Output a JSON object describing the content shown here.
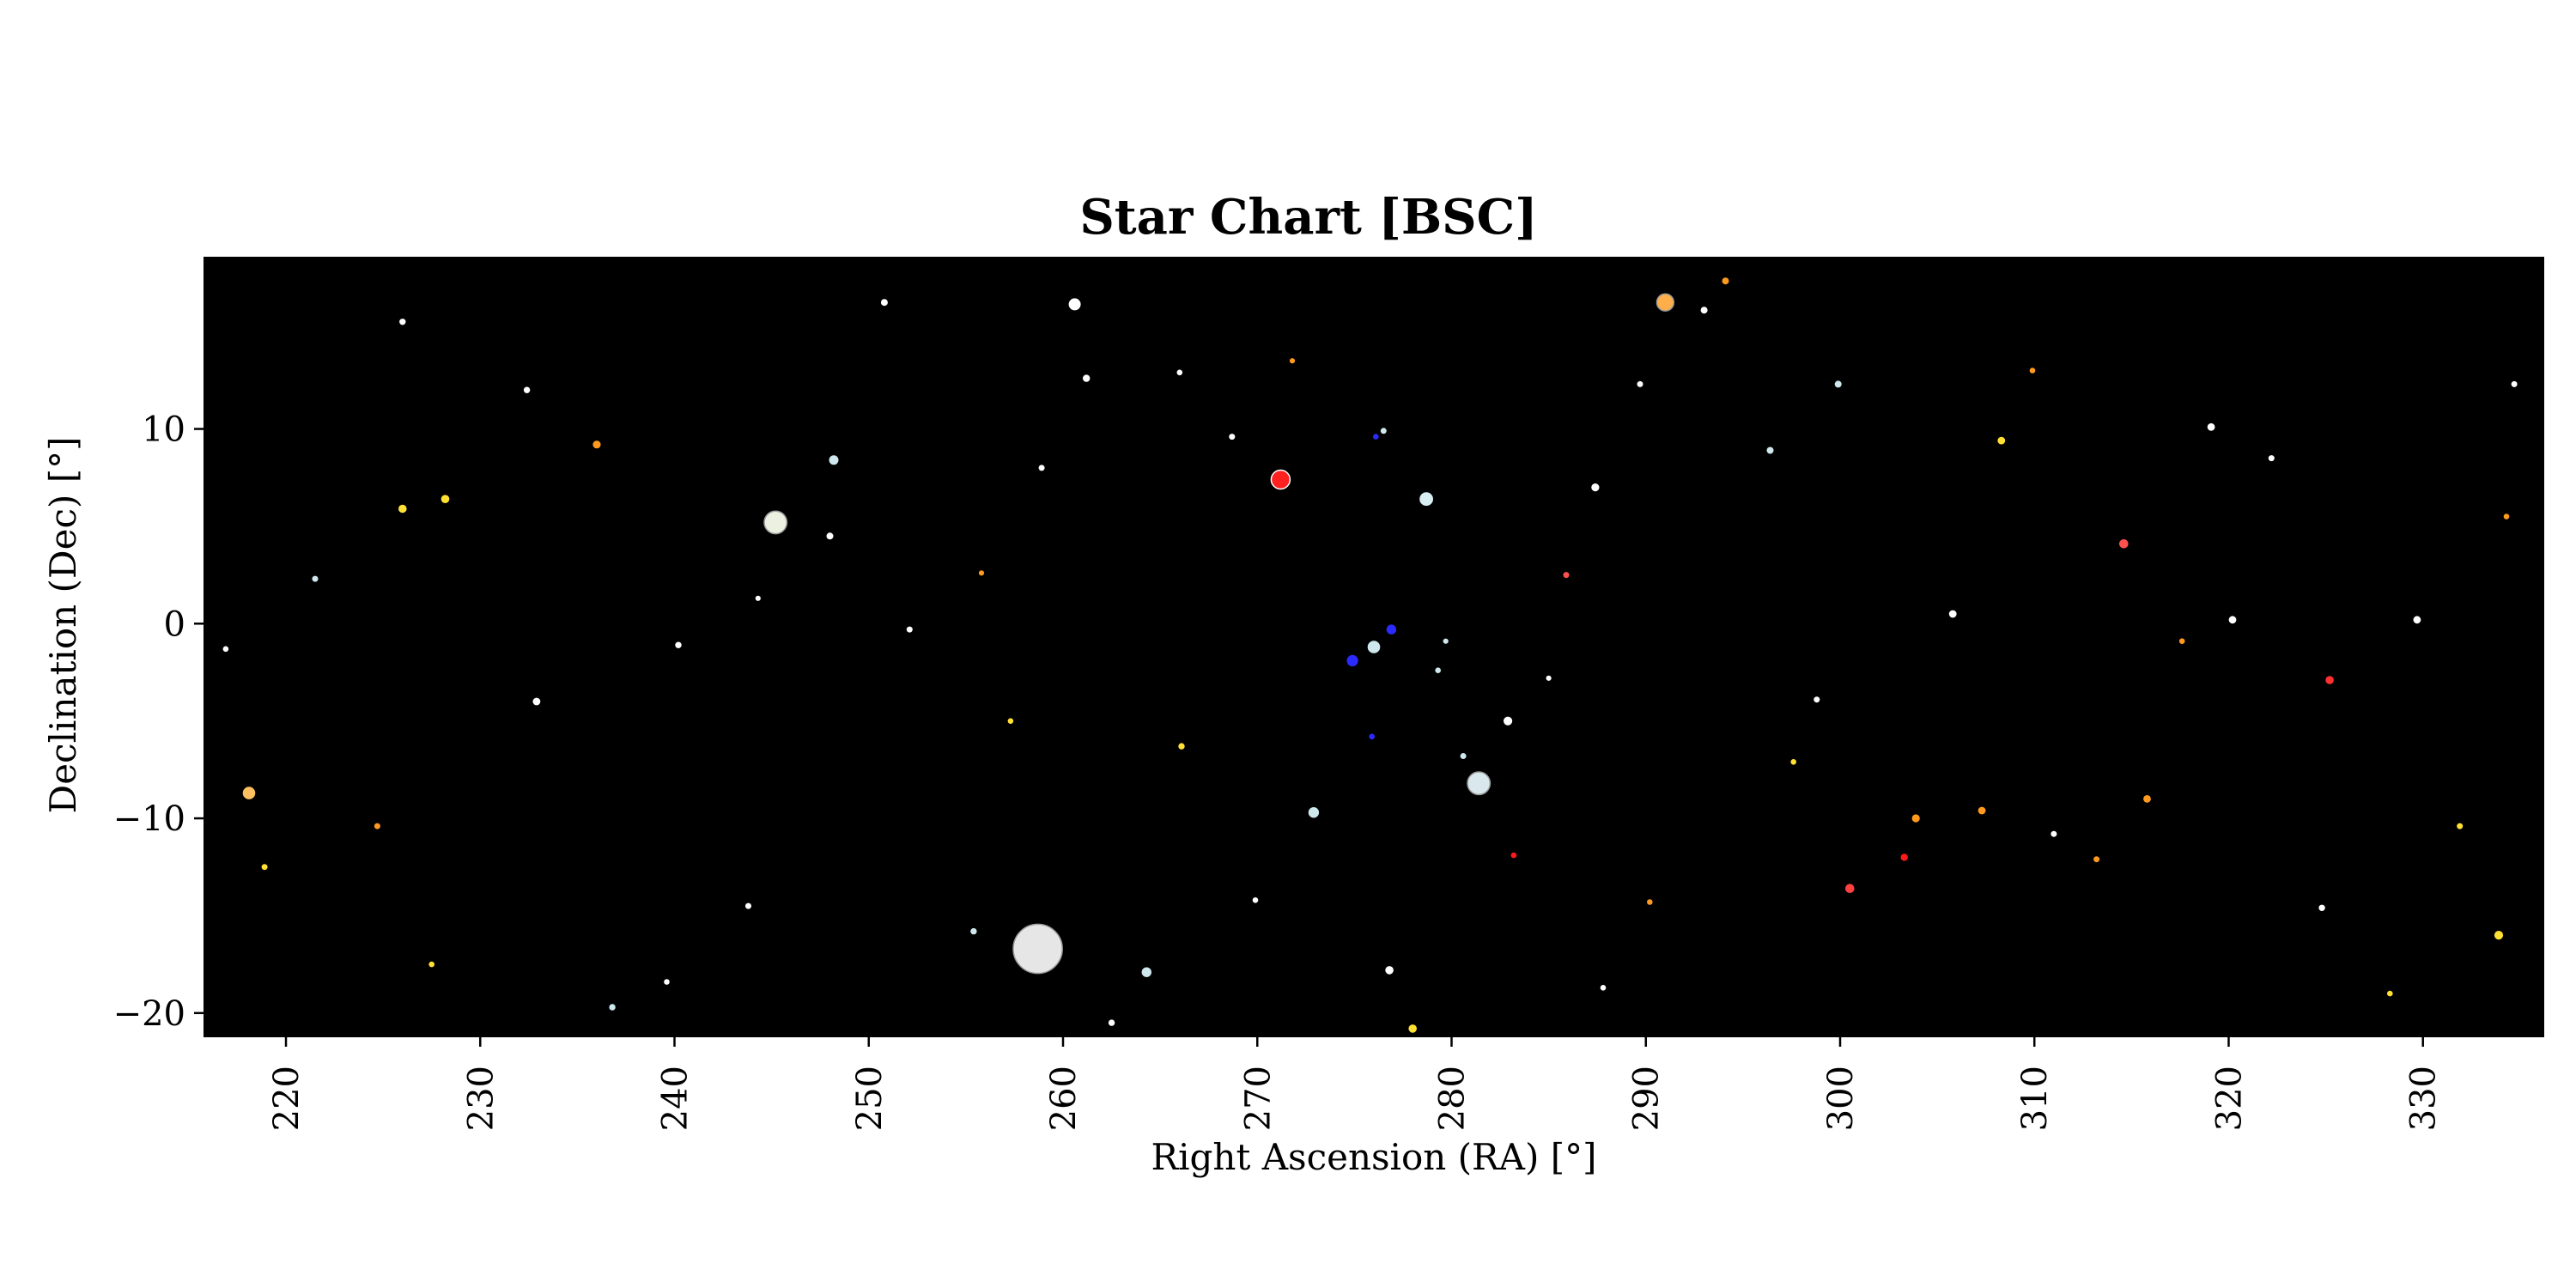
{
  "chart_data": {
    "type": "scatter",
    "title": "Star Chart [BSC]",
    "xlabel": "Right Ascension (RA) [°]",
    "ylabel": "Declination (Dec) [°]",
    "xlim": [
      215.8,
      336.2
    ],
    "ylim": [
      -21.2,
      18.8
    ],
    "xticks": [
      220,
      230,
      240,
      250,
      260,
      270,
      280,
      290,
      300,
      310,
      320,
      330
    ],
    "yticks": [
      -20,
      -10,
      0,
      10
    ],
    "xtick_labels": [
      "220",
      "230",
      "240",
      "250",
      "260",
      "270",
      "280",
      "290",
      "300",
      "310",
      "320",
      "330"
    ],
    "ytick_labels": [
      "−20",
      "−10",
      "0",
      "10"
    ],
    "background": "#000000",
    "grid": false,
    "star_colors": {
      "white": "#ffffff",
      "blue-white": "#cfe8ee",
      "yellow": "#ffe033",
      "orange": "#ff9a1f",
      "red": "#ff1a1a",
      "blue": "#2b2bff"
    },
    "points": [
      {
        "ra": 258.7,
        "dec": -16.7,
        "size": 13,
        "color": "#e6e6e6"
      },
      {
        "ra": 281.4,
        "dec": -8.2,
        "size": 6,
        "color": "#d8e8ec"
      },
      {
        "ra": 245.2,
        "dec": 5.2,
        "size": 6,
        "color": "#ecf0e0"
      },
      {
        "ra": 271.2,
        "dec": 7.4,
        "size": 5,
        "color": "#ff2020"
      },
      {
        "ra": 291.0,
        "dec": 16.5,
        "size": 4.5,
        "color": "#ffae4a"
      },
      {
        "ra": 278.7,
        "dec": 6.4,
        "size": 3.6,
        "color": "#d8eef2"
      },
      {
        "ra": 218.1,
        "dec": -8.7,
        "size": 3.3,
        "color": "#ffc060"
      },
      {
        "ra": 260.6,
        "dec": 16.4,
        "size": 3.2,
        "color": "#ffffff"
      },
      {
        "ra": 276.0,
        "dec": -1.2,
        "size": 3.3,
        "color": "#cfe8ee"
      },
      {
        "ra": 274.9,
        "dec": -1.9,
        "size": 3,
        "color": "#2b2bff"
      },
      {
        "ra": 276.9,
        "dec": -0.3,
        "size": 2.6,
        "color": "#2b2bff"
      },
      {
        "ra": 272.9,
        "dec": -9.7,
        "size": 2.8,
        "color": "#cfe8ee"
      },
      {
        "ra": 264.3,
        "dec": -17.9,
        "size": 2.6,
        "color": "#cfe8ee"
      },
      {
        "ra": 300.5,
        "dec": -13.6,
        "size": 2.4,
        "color": "#ff4040"
      },
      {
        "ra": 314.6,
        "dec": 4.1,
        "size": 2.4,
        "color": "#ff5050"
      },
      {
        "ra": 248.2,
        "dec": 8.4,
        "size": 2.5,
        "color": "#cfe8ee"
      },
      {
        "ra": 282.9,
        "dec": -5.0,
        "size": 2.3,
        "color": "#ffffff"
      },
      {
        "ra": 325.2,
        "dec": -2.9,
        "size": 2.2,
        "color": "#ff3030"
      },
      {
        "ra": 333.9,
        "dec": -16.0,
        "size": 2.3,
        "color": "#ffe033"
      },
      {
        "ra": 278.0,
        "dec": -20.8,
        "size": 2.2,
        "color": "#ffe033"
      },
      {
        "ra": 226.0,
        "dec": 5.9,
        "size": 2.2,
        "color": "#ffe033"
      },
      {
        "ra": 228.2,
        "dec": 6.4,
        "size": 2.2,
        "color": "#ffe033"
      },
      {
        "ra": 236.0,
        "dec": 9.2,
        "size": 2.1,
        "color": "#ff9a1f"
      },
      {
        "ra": 276.8,
        "dec": -17.8,
        "size": 2.2,
        "color": "#ffffff"
      },
      {
        "ra": 287.4,
        "dec": 7.0,
        "size": 2.1,
        "color": "#ffffff"
      },
      {
        "ra": 303.9,
        "dec": -10.0,
        "size": 2.1,
        "color": "#ff9a1f"
      },
      {
        "ra": 307.3,
        "dec": -9.6,
        "size": 2.0,
        "color": "#ff9a1f"
      },
      {
        "ra": 315.8,
        "dec": -9.0,
        "size": 2.0,
        "color": "#ff9a1f"
      },
      {
        "ra": 232.9,
        "dec": -4.0,
        "size": 2.0,
        "color": "#ffffff"
      },
      {
        "ra": 305.8,
        "dec": 0.5,
        "size": 2.0,
        "color": "#ffffff"
      },
      {
        "ra": 319.1,
        "dec": 10.1,
        "size": 2.0,
        "color": "#ffffff"
      },
      {
        "ra": 329.7,
        "dec": 0.2,
        "size": 2.0,
        "color": "#ffffff"
      },
      {
        "ra": 303.3,
        "dec": -12.0,
        "size": 1.9,
        "color": "#ff1a1a"
      },
      {
        "ra": 308.3,
        "dec": 9.4,
        "size": 2.0,
        "color": "#ffe033"
      },
      {
        "ra": 320.2,
        "dec": 0.2,
        "size": 2.0,
        "color": "#ffffff"
      },
      {
        "ra": 261.2,
        "dec": 12.6,
        "size": 1.9,
        "color": "#ffffff"
      },
      {
        "ra": 250.8,
        "dec": 16.5,
        "size": 1.8,
        "color": "#ffffff"
      },
      {
        "ra": 226.0,
        "dec": 15.5,
        "size": 1.7,
        "color": "#ffffff"
      },
      {
        "ra": 296.4,
        "dec": 8.9,
        "size": 1.8,
        "color": "#cfe8ee"
      },
      {
        "ra": 299.9,
        "dec": 12.3,
        "size": 1.8,
        "color": "#cfe8ee"
      },
      {
        "ra": 294.1,
        "dec": 17.6,
        "size": 1.8,
        "color": "#ff9a1f"
      },
      {
        "ra": 293.0,
        "dec": 16.1,
        "size": 1.8,
        "color": "#ffffff"
      },
      {
        "ra": 232.4,
        "dec": 12.0,
        "size": 1.7,
        "color": "#ffffff"
      },
      {
        "ra": 248.0,
        "dec": 4.5,
        "size": 1.8,
        "color": "#ffffff"
      },
      {
        "ra": 262.5,
        "dec": -20.5,
        "size": 1.7,
        "color": "#ffffff"
      },
      {
        "ra": 266.1,
        "dec": -6.3,
        "size": 1.7,
        "color": "#ffe033"
      },
      {
        "ra": 240.2,
        "dec": -1.1,
        "size": 1.7,
        "color": "#ffffff"
      },
      {
        "ra": 255.4,
        "dec": -15.8,
        "size": 1.7,
        "color": "#cfe8ee"
      },
      {
        "ra": 313.2,
        "dec": -12.1,
        "size": 1.6,
        "color": "#ff9a1f"
      },
      {
        "ra": 324.8,
        "dec": -14.6,
        "size": 1.7,
        "color": "#ffffff"
      },
      {
        "ra": 236.8,
        "dec": -19.7,
        "size": 1.7,
        "color": "#cfe8ee"
      },
      {
        "ra": 224.7,
        "dec": -10.4,
        "size": 1.6,
        "color": "#ff9a1f"
      },
      {
        "ra": 218.9,
        "dec": -12.5,
        "size": 1.6,
        "color": "#ffe033"
      },
      {
        "ra": 221.5,
        "dec": 2.3,
        "size": 1.6,
        "color": "#cfe8ee"
      },
      {
        "ra": 243.8,
        "dec": -14.5,
        "size": 1.6,
        "color": "#ffffff"
      },
      {
        "ra": 252.1,
        "dec": -0.3,
        "size": 1.6,
        "color": "#ffffff"
      },
      {
        "ra": 258.9,
        "dec": 8.0,
        "size": 1.6,
        "color": "#ffffff"
      },
      {
        "ra": 268.7,
        "dec": 9.6,
        "size": 1.6,
        "color": "#ffffff"
      },
      {
        "ra": 276.5,
        "dec": 9.9,
        "size": 1.6,
        "color": "#cfe8ee"
      },
      {
        "ra": 285.9,
        "dec": 2.5,
        "size": 1.6,
        "color": "#ff5050"
      },
      {
        "ra": 289.7,
        "dec": 12.3,
        "size": 1.6,
        "color": "#ffffff"
      },
      {
        "ra": 298.8,
        "dec": -3.9,
        "size": 1.6,
        "color": "#ffffff"
      },
      {
        "ra": 311.0,
        "dec": -10.8,
        "size": 1.6,
        "color": "#ffffff"
      },
      {
        "ra": 322.2,
        "dec": 8.5,
        "size": 1.6,
        "color": "#ffffff"
      },
      {
        "ra": 334.7,
        "dec": 12.3,
        "size": 1.6,
        "color": "#ffffff"
      },
      {
        "ra": 331.9,
        "dec": -10.4,
        "size": 1.6,
        "color": "#ffe033"
      },
      {
        "ra": 280.6,
        "dec": -6.8,
        "size": 1.6,
        "color": "#cfe8ee"
      },
      {
        "ra": 279.3,
        "dec": -2.4,
        "size": 1.5,
        "color": "#cfe8ee"
      },
      {
        "ra": 275.9,
        "dec": -5.8,
        "size": 1.5,
        "color": "#2b2bff"
      },
      {
        "ra": 276.1,
        "dec": 9.6,
        "size": 1.5,
        "color": "#2b2bff"
      },
      {
        "ra": 279.7,
        "dec": -0.9,
        "size": 1.4,
        "color": "#cfe8ee"
      },
      {
        "ra": 285.0,
        "dec": -2.8,
        "size": 1.4,
        "color": "#ffffff"
      },
      {
        "ra": 283.2,
        "dec": -11.9,
        "size": 1.5,
        "color": "#ff1a1a"
      },
      {
        "ra": 269.9,
        "dec": -14.2,
        "size": 1.5,
        "color": "#ffffff"
      },
      {
        "ra": 257.3,
        "dec": -5.0,
        "size": 1.5,
        "color": "#ffe033"
      },
      {
        "ra": 239.6,
        "dec": -18.4,
        "size": 1.5,
        "color": "#ffffff"
      },
      {
        "ra": 227.5,
        "dec": -17.5,
        "size": 1.5,
        "color": "#ffe033"
      },
      {
        "ra": 216.9,
        "dec": -1.3,
        "size": 1.5,
        "color": "#ffffff"
      },
      {
        "ra": 334.3,
        "dec": 5.5,
        "size": 1.5,
        "color": "#ff9a1f"
      },
      {
        "ra": 328.3,
        "dec": -19.0,
        "size": 1.5,
        "color": "#ffe033"
      },
      {
        "ra": 317.6,
        "dec": -0.9,
        "size": 1.5,
        "color": "#ff9a1f"
      },
      {
        "ra": 309.9,
        "dec": 13.0,
        "size": 1.5,
        "color": "#ff9a1f"
      },
      {
        "ra": 297.6,
        "dec": -7.1,
        "size": 1.5,
        "color": "#ffe033"
      },
      {
        "ra": 290.2,
        "dec": -14.3,
        "size": 1.5,
        "color": "#ff9a1f"
      },
      {
        "ra": 266.0,
        "dec": 12.9,
        "size": 1.5,
        "color": "#ffffff"
      },
      {
        "ra": 271.8,
        "dec": 13.5,
        "size": 1.4,
        "color": "#ff9a1f"
      },
      {
        "ra": 287.8,
        "dec": -18.7,
        "size": 1.5,
        "color": "#ffffff"
      },
      {
        "ra": 244.3,
        "dec": 1.3,
        "size": 1.4,
        "color": "#ffffff"
      },
      {
        "ra": 255.8,
        "dec": 2.6,
        "size": 1.4,
        "color": "#ff9a1f"
      }
    ]
  }
}
